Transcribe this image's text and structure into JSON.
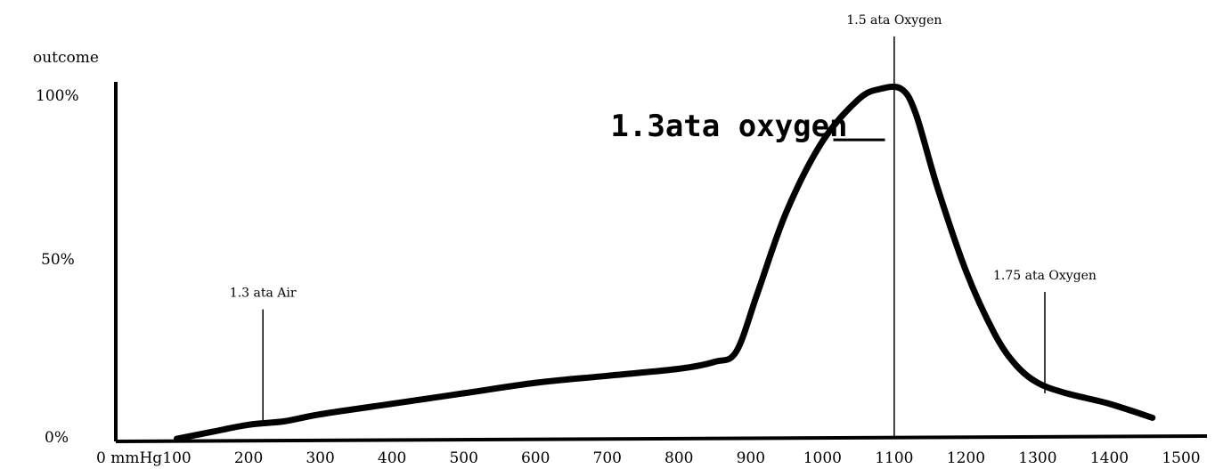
{
  "chart_data": {
    "type": "line",
    "title": "",
    "ylabel": "outcome",
    "xlabel": "",
    "x_tick_labels": [
      "0 mmHg",
      "100",
      "200",
      "300",
      "400",
      "500",
      "600",
      "700",
      "800",
      "900",
      "1000",
      "1100",
      "1200",
      "1300",
      "1400",
      "1500"
    ],
    "x_tick_values": [
      0,
      100,
      200,
      300,
      400,
      500,
      600,
      700,
      800,
      900,
      1000,
      1100,
      1200,
      1300,
      1400,
      1500
    ],
    "y_tick_labels": [
      "100%",
      "50%",
      "0%"
    ],
    "y_tick_values": [
      100,
      50,
      0
    ],
    "xlim": [
      0,
      1500
    ],
    "ylim": [
      0,
      100
    ],
    "grid": false,
    "series": [
      {
        "x": [
          100,
          150,
          200,
          250,
          300,
          400,
          500,
          600,
          700,
          800,
          850,
          880,
          910,
          950,
          1000,
          1050,
          1080,
          1110,
          1130,
          1160,
          1200,
          1240,
          1270,
          1300,
          1340,
          1400,
          1460
        ],
        "y": [
          0,
          2,
          4,
          5,
          7,
          10,
          13,
          16,
          18,
          20,
          22,
          25,
          42,
          65,
          85,
          97,
          100,
          100,
          93,
          72,
          48,
          30,
          21,
          16,
          13,
          10,
          6
        ]
      }
    ],
    "annotations": [
      {
        "text": "1.3 ata Air",
        "x": 220,
        "y_top": 37,
        "y_bottom": 5
      },
      {
        "text": "1.5 ata Oxygen",
        "x": 1100,
        "y_top": 115,
        "y_bottom": 0
      },
      {
        "text": "1.75 ata Oxygen",
        "x": 1310,
        "y_top": 42,
        "y_bottom": 13
      },
      {
        "text": "1.3ata oxygen",
        "x": 1040,
        "y": 87
      }
    ]
  },
  "colors": {
    "line": "#000000",
    "background": "#ffffff"
  }
}
